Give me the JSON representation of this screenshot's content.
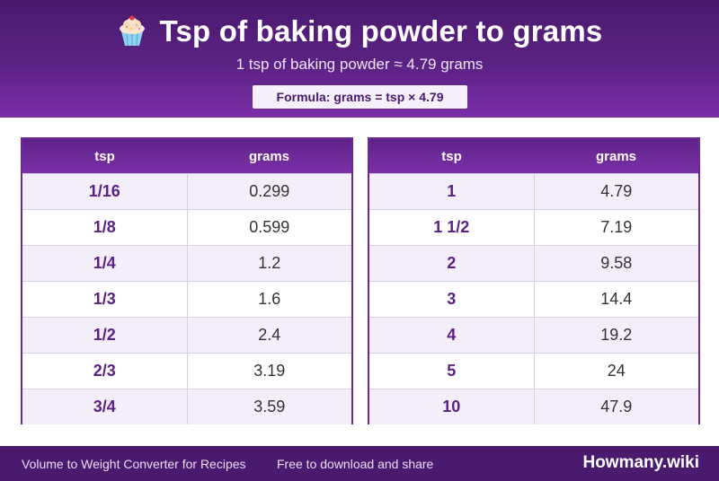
{
  "header": {
    "title": "Tsp of baking powder to grams",
    "subtitle": "1 tsp of baking powder ≈ 4.79 grams",
    "formula": "Formula: grams = tsp × 4.79",
    "icon": "cupcake-icon"
  },
  "columns": {
    "tsp": "tsp",
    "grams": "grams"
  },
  "tables": [
    {
      "rows": [
        {
          "tsp": "1/16",
          "grams": "0.299"
        },
        {
          "tsp": "1/8",
          "grams": "0.599"
        },
        {
          "tsp": "1/4",
          "grams": "1.2"
        },
        {
          "tsp": "1/3",
          "grams": "1.6"
        },
        {
          "tsp": "1/2",
          "grams": "2.4"
        },
        {
          "tsp": "2/3",
          "grams": "3.19"
        },
        {
          "tsp": "3/4",
          "grams": "3.59"
        }
      ]
    },
    {
      "rows": [
        {
          "tsp": "1",
          "grams": "4.79"
        },
        {
          "tsp": "1 1/2",
          "grams": "7.19"
        },
        {
          "tsp": "2",
          "grams": "9.58"
        },
        {
          "tsp": "3",
          "grams": "14.4"
        },
        {
          "tsp": "4",
          "grams": "19.2"
        },
        {
          "tsp": "5",
          "grams": "24"
        },
        {
          "tsp": "10",
          "grams": "47.9"
        }
      ]
    }
  ],
  "footer": {
    "left_text": "Volume to Weight Converter for Recipes",
    "middle_text": "Free to download and share",
    "brand": "Howmany.wiki"
  },
  "colors": {
    "header_purple": "#5b2283",
    "footer_purple": "#4a1a6e",
    "accent_text": "#5b1f86"
  }
}
